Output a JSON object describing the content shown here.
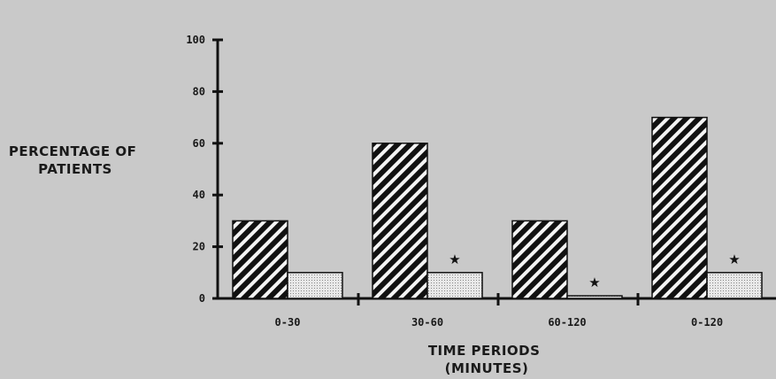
{
  "chart_data": {
    "type": "bar",
    "title": "",
    "ylabel_lines": [
      "PERCENTAGE OF",
      "PATIENTS"
    ],
    "xlabel_lines": [
      "TIME PERIODS",
      "(MINUTES)"
    ],
    "categories": [
      "0-30",
      "30-60",
      "60-120",
      "0-120"
    ],
    "ylim": [
      0,
      100
    ],
    "yticks": [
      0,
      20,
      40,
      60,
      80,
      100
    ],
    "series": [
      {
        "values": [
          30,
          60,
          30,
          70
        ],
        "pattern": "diagonal-hatch",
        "color": "#111111"
      },
      {
        "values": [
          10,
          10,
          1,
          10
        ],
        "pattern": "dotted-light",
        "color": "#e4e4e4"
      }
    ],
    "significance_markers": [
      "",
      "★",
      "★",
      "★"
    ],
    "grid": false,
    "legend": "none"
  }
}
